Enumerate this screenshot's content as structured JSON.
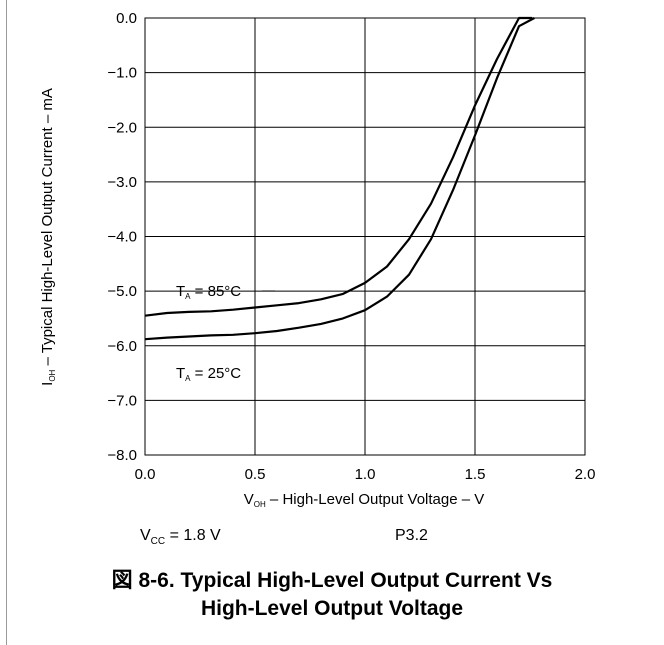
{
  "chart_data": {
    "type": "line",
    "xlabel": {
      "main": "V",
      "sub": "OH",
      "rest": " – High-Level Output Voltage – V"
    },
    "ylabel": {
      "main": "I",
      "sub": "OH",
      "rest": " – Typical High-Level Output Current – mA"
    },
    "xlim": [
      0.0,
      2.0
    ],
    "ylim": [
      -8.0,
      0.0
    ],
    "x_ticks": [
      "0.0",
      "0.5",
      "1.0",
      "1.5",
      "2.0"
    ],
    "y_ticks": [
      "0.0",
      "−1.0",
      "−2.0",
      "−3.0",
      "−4.0",
      "−5.0",
      "−6.0",
      "−7.0",
      "−8.0"
    ],
    "grid": true,
    "series": [
      {
        "name": {
          "main": "T",
          "sub": "A",
          "rest": " = 85°C"
        },
        "x": [
          0.0,
          0.1,
          0.2,
          0.3,
          0.4,
          0.5,
          0.6,
          0.7,
          0.8,
          0.9,
          1.0,
          1.1,
          1.2,
          1.3,
          1.4,
          1.5,
          1.6,
          1.7,
          1.76
        ],
        "y": [
          -5.45,
          -5.4,
          -5.38,
          -5.37,
          -5.34,
          -5.3,
          -5.26,
          -5.22,
          -5.15,
          -5.05,
          -4.85,
          -4.55,
          -4.05,
          -3.4,
          -2.55,
          -1.6,
          -0.75,
          0.0,
          0.0
        ]
      },
      {
        "name": {
          "main": "T",
          "sub": "A",
          "rest": " = 25°C"
        },
        "x": [
          0.0,
          0.1,
          0.2,
          0.3,
          0.4,
          0.5,
          0.6,
          0.7,
          0.8,
          0.9,
          1.0,
          1.1,
          1.2,
          1.3,
          1.4,
          1.5,
          1.6,
          1.7,
          1.77
        ],
        "y": [
          -5.88,
          -5.85,
          -5.83,
          -5.81,
          -5.8,
          -5.77,
          -5.73,
          -5.67,
          -5.6,
          -5.5,
          -5.35,
          -5.1,
          -4.7,
          -4.05,
          -3.15,
          -2.15,
          -1.1,
          -0.15,
          0.0
        ]
      }
    ]
  },
  "notes": {
    "vcc": {
      "main": "V",
      "sub": "CC",
      "rest": " = 1.8 V"
    },
    "port": "P3.2"
  },
  "caption": {
    "line1": "図 8-6. Typical High-Level Output Current Vs",
    "line2": "High-Level Output Voltage"
  }
}
